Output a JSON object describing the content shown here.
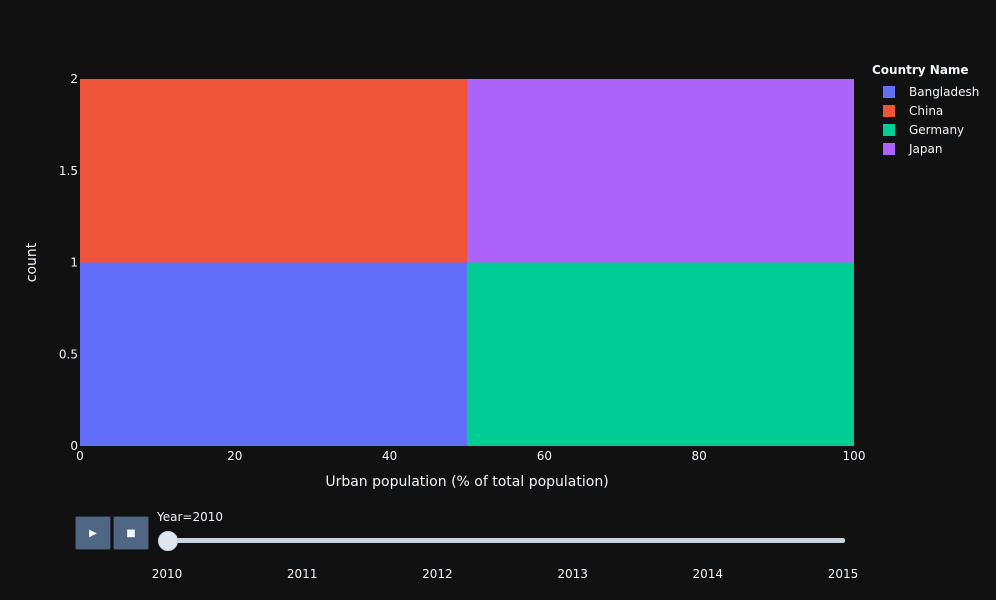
{
  "chart_data": {
    "type": "bar",
    "barmode": "stack",
    "xlabel": "Urban population (% of total population)",
    "ylabel": "count",
    "xlim": [
      0,
      100
    ],
    "ylim": [
      0,
      2
    ],
    "x_ticks": [
      "0",
      "20",
      "40",
      "60",
      "80",
      "100"
    ],
    "y_ticks": [
      "0",
      "0.5",
      "1",
      "1.5",
      "2"
    ],
    "bins": [
      {
        "from": 0,
        "to": 50
      },
      {
        "from": 50,
        "to": 100
      }
    ],
    "series": [
      {
        "name": "Bangladesh",
        "color": "#636efa",
        "counts": [
          1,
          0
        ]
      },
      {
        "name": "China",
        "color": "#ef553b",
        "counts": [
          1,
          0
        ]
      },
      {
        "name": "Germany",
        "color": "#00cc96",
        "counts": [
          0,
          1
        ]
      },
      {
        "name": "Japan",
        "color": "#ab63fa",
        "counts": [
          0,
          1
        ]
      }
    ],
    "legend_title": "Country Name",
    "legend_position": "top-right"
  },
  "slider": {
    "label": "Year=2010",
    "steps": [
      "2010",
      "2011",
      "2012",
      "2013",
      "2014",
      "2015"
    ],
    "value": "2010"
  },
  "controls": {
    "play_icon": "▶",
    "stop_icon": "■"
  }
}
